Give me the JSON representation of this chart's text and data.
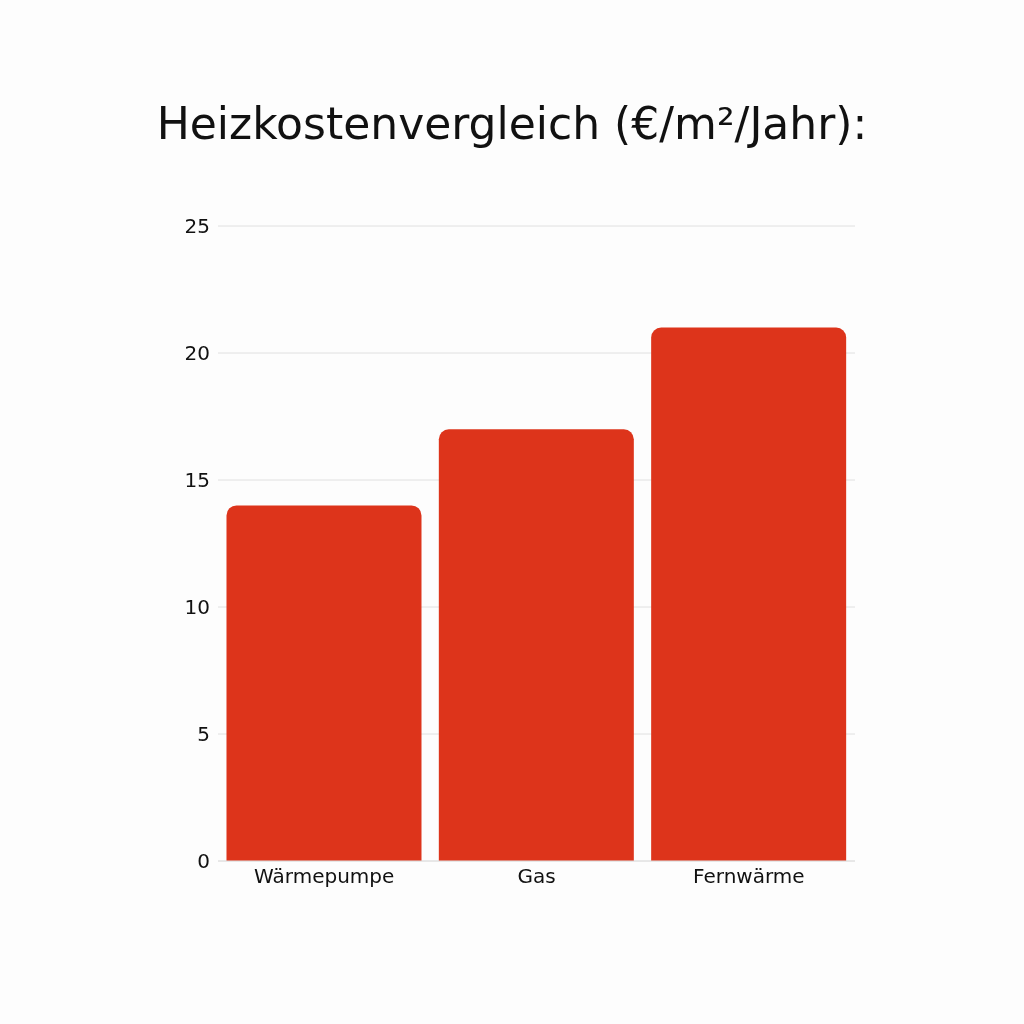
{
  "chart_data": {
    "type": "bar",
    "title": "Heizkostenvergleich (€/m²/Jahr):",
    "categories": [
      "Wärmepumpe",
      "Gas",
      "Fernwärme"
    ],
    "values": [
      14,
      17,
      21
    ],
    "color": "#dd341b",
    "ylim": [
      0,
      25
    ],
    "yticks": [
      0,
      5,
      10,
      15,
      20,
      25
    ],
    "grid": "y"
  }
}
